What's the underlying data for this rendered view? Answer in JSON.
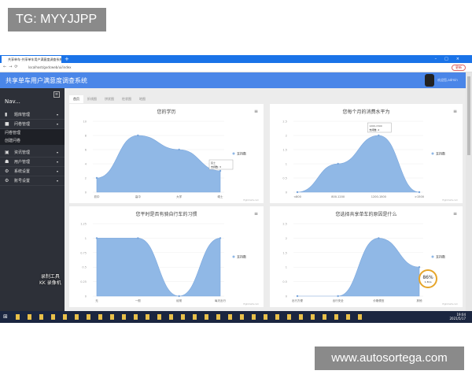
{
  "watermarks": {
    "top": "TG: MYYJJPP",
    "bottom": "www.autosortega.com"
  },
  "browser": {
    "tab_title": "共享单车-共享单车用户满意度调查系统",
    "url": "localhost/gxdcweb/ui/index",
    "update_label": "更新"
  },
  "app": {
    "title": "共享单车用户满意度调查系统",
    "user": "欢迎您,admin"
  },
  "sidebar": {
    "header": "Nav...",
    "items": [
      {
        "label": "题库管理",
        "icon": "file-icon"
      },
      {
        "label": "问卷管理",
        "icon": "folder-icon",
        "expanded": true,
        "children": [
          "问卷管理",
          "创建问卷"
        ]
      },
      {
        "label": "资讯管理",
        "icon": "news-icon"
      },
      {
        "label": "用户管理",
        "icon": "users-icon"
      },
      {
        "label": "系统设置",
        "icon": "gear-icon"
      },
      {
        "label": "账号设置",
        "icon": "gear-icon"
      }
    ]
  },
  "tabs": [
    "首页",
    "折线图",
    "饼状图",
    "柱状图",
    "地图"
  ],
  "active_tab": 0,
  "recorder": {
    "line1": "录制工具",
    "line2": "KK 录像机"
  },
  "progress_badge": {
    "value": "86%",
    "sub": "1.3k/s"
  },
  "clock": {
    "time": "19:04",
    "date": "2021/5/17"
  },
  "chart_data": [
    {
      "type": "area",
      "title": "您的学历",
      "categories": [
        "初中",
        "高中",
        "大学",
        "硕士"
      ],
      "series": [
        {
          "name": "支持数",
          "values": [
            2,
            8,
            6,
            3
          ]
        }
      ],
      "ylim": [
        0,
        10
      ],
      "yticks": [
        0,
        2,
        4,
        6,
        8,
        10
      ],
      "legend": "right",
      "tooltip": {
        "title": "硕士",
        "text": "支持数: 3"
      },
      "color": "#90b8e6",
      "credit": "Highcharts.com"
    },
    {
      "type": "area",
      "title": "您每个月的消费水平为",
      "categories": [
        "<800",
        "800-1200",
        "1200-1500",
        ">1500"
      ],
      "series": [
        {
          "name": "支持数",
          "values": [
            0,
            1,
            2,
            0
          ]
        }
      ],
      "ylim": [
        0,
        2.5
      ],
      "yticks": [
        0,
        0.5,
        1,
        1.5,
        2,
        2.5
      ],
      "legend": "right",
      "tooltip": {
        "title": "1200-1500",
        "text": "支持数: 2"
      },
      "color": "#90b8e6",
      "credit": "Highcharts.com"
    },
    {
      "type": "area",
      "title": "您平时是否有骑自行车的习惯",
      "categories": [
        "无",
        "一般",
        "经常",
        "每天出行"
      ],
      "series": [
        {
          "name": "支持数",
          "values": [
            1,
            1,
            0,
            1
          ]
        }
      ],
      "ylim": [
        0,
        1.25
      ],
      "yticks": [
        0,
        0.25,
        0.5,
        0.75,
        1,
        1.25
      ],
      "legend": "right",
      "color": "#90b8e6",
      "credit": "Highcharts.com"
    },
    {
      "type": "area",
      "title": "您选择共享单车的原因是什么",
      "categories": [
        "出行方便",
        "出行安全",
        "价格便宜",
        "其他"
      ],
      "series": [
        {
          "name": "支持数",
          "values": [
            0,
            0,
            2,
            1
          ]
        }
      ],
      "ylim": [
        0,
        2.5
      ],
      "yticks": [
        0,
        0.5,
        1,
        1.5,
        2,
        2.5
      ],
      "legend": "right",
      "color": "#90b8e6",
      "credit": "Highcharts.com"
    }
  ]
}
